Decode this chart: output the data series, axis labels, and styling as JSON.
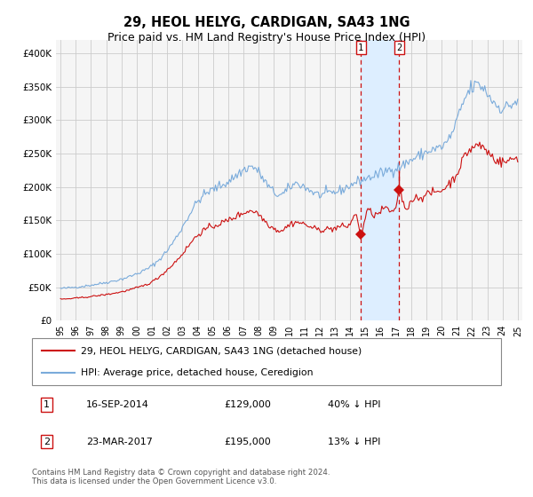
{
  "title": "29, HEOL HELYG, CARDIGAN, SA43 1NG",
  "subtitle": "Price paid vs. HM Land Registry's House Price Index (HPI)",
  "title_fontsize": 10.5,
  "subtitle_fontsize": 9,
  "ylim": [
    0,
    420000
  ],
  "yticks": [
    0,
    50000,
    100000,
    150000,
    200000,
    250000,
    300000,
    350000,
    400000
  ],
  "ytick_labels": [
    "£0",
    "£50K",
    "£100K",
    "£150K",
    "£200K",
    "£250K",
    "£300K",
    "£350K",
    "£400K"
  ],
  "xlim_left": 1994.7,
  "xlim_right": 2025.3,
  "sale1_date": 2014.71,
  "sale1_price": 129000,
  "sale2_date": 2017.22,
  "sale2_price": 195000,
  "sale2_hpi": 224000,
  "hpi_color": "#7aabdb",
  "price_color": "#cc1111",
  "shade_color": "#ddeeff",
  "grid_color": "#cccccc",
  "bg_color": "#f5f5f5",
  "legend_label_red": "29, HEOL HELYG, CARDIGAN, SA43 1NG (detached house)",
  "legend_label_blue": "HPI: Average price, detached house, Ceredigion",
  "footer": "Contains HM Land Registry data © Crown copyright and database right 2024.\nThis data is licensed under the Open Government Licence v3.0."
}
